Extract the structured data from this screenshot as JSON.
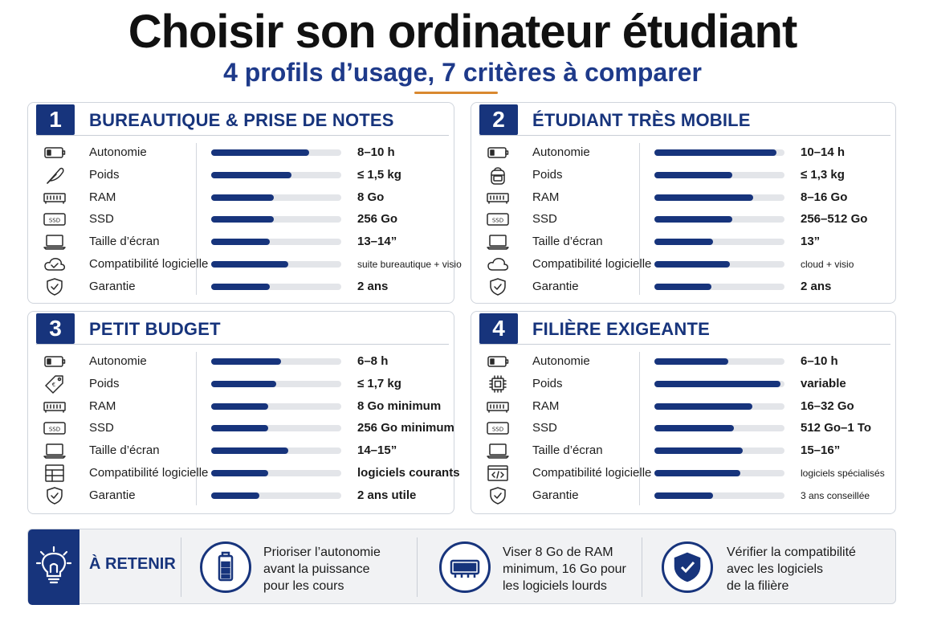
{
  "title": "Choisir son ordinateur étudiant",
  "subtitle": "4 profils d’usage, 7 critères à comparer",
  "colors": {
    "navy": "#17347c",
    "accent": "#d9882f",
    "track": "#e3e5e9"
  },
  "profiles": [
    {
      "num": "1",
      "title": "BUREAUTIQUE & PRISE DE NOTES",
      "rows": [
        {
          "icon": "battery-icon",
          "label": "Autonomie",
          "level": 0.75,
          "value": "8–10 h"
        },
        {
          "icon": "feather-icon",
          "label": "Poids",
          "level": 0.62,
          "value": "≤ 1,5 kg"
        },
        {
          "icon": "ram-icon",
          "label": "RAM",
          "level": 0.48,
          "value": "8 Go"
        },
        {
          "icon": "ssd-icon",
          "label": "SSD",
          "level": 0.48,
          "value": "256 Go"
        },
        {
          "icon": "laptop-icon",
          "label": "Taille d’écran",
          "level": 0.45,
          "value": "13–14”"
        },
        {
          "icon": "cloud-check-icon",
          "label": "Compatibilité logicielle",
          "level": 0.59,
          "value": "suite bureautique + visio"
        },
        {
          "icon": "shield-check-icon",
          "label": "Garantie",
          "level": 0.45,
          "value": "2 ans"
        }
      ]
    },
    {
      "num": "2",
      "title": "ÉTUDIANT TRÈS MOBILE",
      "rows": [
        {
          "icon": "battery-icon",
          "label": "Autonomie",
          "level": 0.94,
          "value": "10–14 h"
        },
        {
          "icon": "backpack-icon",
          "label": "Poids",
          "level": 0.6,
          "value": "≤ 1,3 kg"
        },
        {
          "icon": "ram-icon",
          "label": "RAM",
          "level": 0.76,
          "value": "8–16 Go"
        },
        {
          "icon": "ssd-icon",
          "label": "SSD",
          "level": 0.6,
          "value": "256–512 Go"
        },
        {
          "icon": "laptop-icon",
          "label": "Taille d’écran",
          "level": 0.45,
          "value": "13”"
        },
        {
          "icon": "cloud-icon",
          "label": "Compatibilité logicielle",
          "level": 0.58,
          "value": "cloud + visio"
        },
        {
          "icon": "shield-check-icon",
          "label": "Garantie",
          "level": 0.44,
          "value": "2 ans"
        }
      ]
    },
    {
      "num": "3",
      "title": "PETIT BUDGET",
      "rows": [
        {
          "icon": "battery-icon",
          "label": "Autonomie",
          "level": 0.54,
          "value": "6–8 h"
        },
        {
          "icon": "price-tag-icon",
          "label": "Poids",
          "level": 0.5,
          "value": "≤ 1,7 kg"
        },
        {
          "icon": "ram-icon",
          "label": "RAM",
          "level": 0.44,
          "value": "8 Go minimum"
        },
        {
          "icon": "ssd-icon",
          "label": "SSD",
          "level": 0.44,
          "value": "256 Go minimum"
        },
        {
          "icon": "laptop-icon",
          "label": "Taille d’écran",
          "level": 0.59,
          "value": "14–15”"
        },
        {
          "icon": "grid-icon",
          "label": "Compatibilité logicielle",
          "level": 0.44,
          "value": "logiciels courants"
        },
        {
          "icon": "shield-check-icon",
          "label": "Garantie",
          "level": 0.37,
          "value": "2 ans utile"
        }
      ]
    },
    {
      "num": "4",
      "title": "FILIÈRE  EXIGEANTE",
      "rows": [
        {
          "icon": "battery-icon",
          "label": "Autonomie",
          "level": 0.57,
          "value": "6–10 h"
        },
        {
          "icon": "chip-icon",
          "label": "Poids",
          "level": 0.97,
          "value": "variable"
        },
        {
          "icon": "ram-icon",
          "label": "RAM",
          "level": 0.75,
          "value": "16–32 Go"
        },
        {
          "icon": "ssd-icon",
          "label": "SSD",
          "level": 0.61,
          "value": "512 Go–1 To"
        },
        {
          "icon": "laptop-icon",
          "label": "Taille d’écran",
          "level": 0.68,
          "value": "15–16”"
        },
        {
          "icon": "code-window-icon",
          "label": "Compatibilité logicielle",
          "level": 0.66,
          "value": "logiciels spécialisés"
        },
        {
          "icon": "shield-check-icon",
          "label": "Garantie",
          "level": 0.45,
          "value": "3 ans conseillée"
        }
      ]
    }
  ],
  "retain": {
    "label": "À RETENIR",
    "tips": [
      {
        "icon": "battery-icon",
        "line1": "Prioriser l’autonomie",
        "line2": "avant la puissance",
        "line3": "pour les cours"
      },
      {
        "icon": "ram-icon",
        "line1": "Viser 8 Go de RAM",
        "line2": "minimum, 16 Go pour",
        "line3": "les logiciels lourds"
      },
      {
        "icon": "shield-check-icon",
        "line1": "Vérifier la compatibilité",
        "line2": "avec les logiciels",
        "line3": "de la filière"
      }
    ]
  }
}
